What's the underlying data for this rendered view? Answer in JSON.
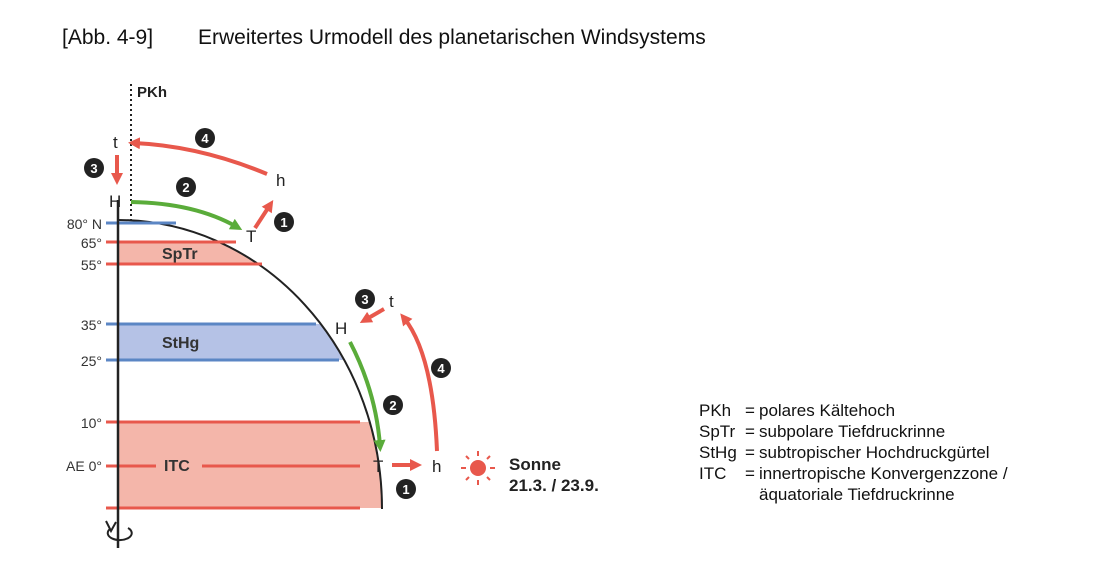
{
  "title": {
    "number": "[Abb. 4-9]",
    "text": "Erweitertes Urmodell des planetarischen Windsystems"
  },
  "diagram": {
    "axis_top_label": "PKh",
    "latitudes": [
      "80° N",
      "65°",
      "55°",
      "35°",
      "25°",
      "10°",
      "AE 0°"
    ],
    "zones": {
      "sptr": "SpTr",
      "sthg": "StHg",
      "itc": "ITC"
    },
    "polar_cell": {
      "t": "t",
      "h": "h",
      "H": "H",
      "T": "T",
      "n1": "1",
      "n2": "2",
      "n3": "3",
      "n4": "4"
    },
    "tropical_cell": {
      "t": "t",
      "h": "h",
      "H": "H",
      "T": "T",
      "n1": "1",
      "n2": "2",
      "n3": "3",
      "n4": "4"
    },
    "sun": {
      "label": "Sonne",
      "date": "21.3. / 23.9."
    },
    "colors": {
      "red": "#e8584c",
      "green": "#5aac3a",
      "blue": "#5b86c4",
      "pink": "#f4b6aa",
      "lightblue": "#b5c2e6"
    }
  },
  "legend": [
    {
      "abbr": "PKh",
      "eq": "=",
      "text": "polares Kältehoch"
    },
    {
      "abbr": "SpTr",
      "eq": "=",
      "text": "subpolare Tiefdruckrinne"
    },
    {
      "abbr": "StHg",
      "eq": "=",
      "text": "subtropischer Hochdruckgürtel"
    },
    {
      "abbr": "ITC",
      "eq": "=",
      "text": "innertropische Konvergenzzone /"
    }
  ],
  "legend_continuation": "äquatoriale Tiefdruckrinne"
}
